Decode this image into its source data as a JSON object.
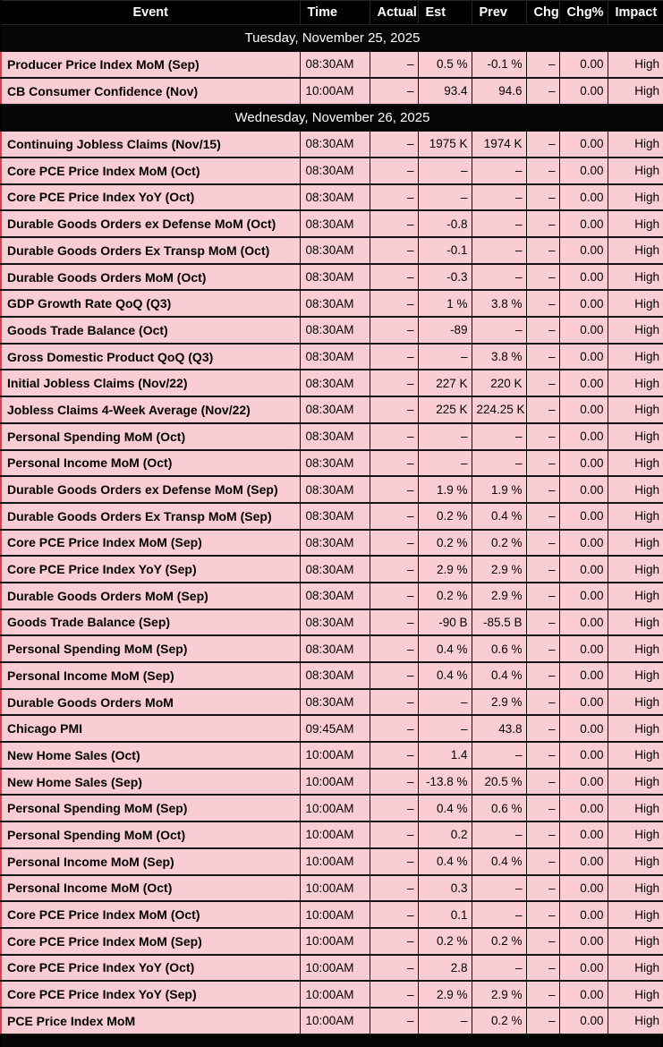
{
  "colors": {
    "row_bg": "#f9cdd3",
    "header_bg": "#000000",
    "date_row_bg": "#050505",
    "cell_border": "#141414",
    "outer_edge_red": "#e23b4f",
    "row_text": "#000000",
    "header_text": "#ffffff"
  },
  "table": {
    "columns": [
      {
        "key": "event",
        "label": "Event"
      },
      {
        "key": "time",
        "label": "Time"
      },
      {
        "key": "actual",
        "label": "Actual"
      },
      {
        "key": "est",
        "label": "Est"
      },
      {
        "key": "prev",
        "label": "Prev"
      },
      {
        "key": "chg",
        "label": "Chg"
      },
      {
        "key": "chgpct",
        "label": "Chg%"
      },
      {
        "key": "impact",
        "label": "Impact"
      }
    ],
    "sections": [
      {
        "date": "Tuesday, November 25, 2025",
        "rows": [
          {
            "event": "Producer Price Index MoM (Sep)",
            "time": "08:30AM",
            "actual": "–",
            "est": "0.5 %",
            "prev": "-0.1 %",
            "chg": "–",
            "chgpct": "0.00",
            "impact": "High"
          },
          {
            "event": "CB Consumer Confidence (Nov)",
            "time": "10:00AM",
            "actual": "–",
            "est": "93.4",
            "prev": "94.6",
            "chg": "–",
            "chgpct": "0.00",
            "impact": "High"
          }
        ]
      },
      {
        "date": "Wednesday, November 26, 2025",
        "rows": [
          {
            "event": "Continuing Jobless Claims (Nov/15)",
            "time": "08:30AM",
            "actual": "–",
            "est": "1975 K",
            "prev": "1974 K",
            "chg": "–",
            "chgpct": "0.00",
            "impact": "High"
          },
          {
            "event": "Core PCE Price Index MoM (Oct)",
            "time": "08:30AM",
            "actual": "–",
            "est": "–",
            "prev": "–",
            "chg": "–",
            "chgpct": "0.00",
            "impact": "High"
          },
          {
            "event": "Core PCE Price Index YoY (Oct)",
            "time": "08:30AM",
            "actual": "–",
            "est": "–",
            "prev": "–",
            "chg": "–",
            "chgpct": "0.00",
            "impact": "High"
          },
          {
            "event": "Durable Goods Orders ex Defense MoM (Oct)",
            "time": "08:30AM",
            "actual": "–",
            "est": "-0.8",
            "prev": "–",
            "chg": "–",
            "chgpct": "0.00",
            "impact": "High"
          },
          {
            "event": "Durable Goods Orders Ex Transp MoM (Oct)",
            "time": "08:30AM",
            "actual": "–",
            "est": "-0.1",
            "prev": "–",
            "chg": "–",
            "chgpct": "0.00",
            "impact": "High"
          },
          {
            "event": "Durable Goods Orders MoM (Oct)",
            "time": "08:30AM",
            "actual": "–",
            "est": "-0.3",
            "prev": "–",
            "chg": "–",
            "chgpct": "0.00",
            "impact": "High"
          },
          {
            "event": "GDP Growth Rate QoQ (Q3)",
            "time": "08:30AM",
            "actual": "–",
            "est": "1 %",
            "prev": "3.8 %",
            "chg": "–",
            "chgpct": "0.00",
            "impact": "High"
          },
          {
            "event": "Goods Trade Balance (Oct)",
            "time": "08:30AM",
            "actual": "–",
            "est": "-89",
            "prev": "–",
            "chg": "–",
            "chgpct": "0.00",
            "impact": "High"
          },
          {
            "event": "Gross Domestic Product QoQ (Q3)",
            "time": "08:30AM",
            "actual": "–",
            "est": "–",
            "prev": "3.8 %",
            "chg": "–",
            "chgpct": "0.00",
            "impact": "High"
          },
          {
            "event": "Initial Jobless Claims (Nov/22)",
            "time": "08:30AM",
            "actual": "–",
            "est": "227 K",
            "prev": "220 K",
            "chg": "–",
            "chgpct": "0.00",
            "impact": "High"
          },
          {
            "event": "Jobless Claims 4-Week Average (Nov/22)",
            "time": "08:30AM",
            "actual": "–",
            "est": "225 K",
            "prev": "224.25 K",
            "chg": "–",
            "chgpct": "0.00",
            "impact": "High"
          },
          {
            "event": "Personal Spending MoM (Oct)",
            "time": "08:30AM",
            "actual": "–",
            "est": "–",
            "prev": "–",
            "chg": "–",
            "chgpct": "0.00",
            "impact": "High"
          },
          {
            "event": "Personal Income MoM (Oct)",
            "time": "08:30AM",
            "actual": "–",
            "est": "–",
            "prev": "–",
            "chg": "–",
            "chgpct": "0.00",
            "impact": "High"
          },
          {
            "event": "Durable Goods Orders ex Defense MoM (Sep)",
            "time": "08:30AM",
            "actual": "–",
            "est": "1.9 %",
            "prev": "1.9 %",
            "chg": "–",
            "chgpct": "0.00",
            "impact": "High"
          },
          {
            "event": "Durable Goods Orders Ex Transp MoM (Sep)",
            "time": "08:30AM",
            "actual": "–",
            "est": "0.2 %",
            "prev": "0.4 %",
            "chg": "–",
            "chgpct": "0.00",
            "impact": "High"
          },
          {
            "event": "Core PCE Price Index MoM (Sep)",
            "time": "08:30AM",
            "actual": "–",
            "est": "0.2 %",
            "prev": "0.2 %",
            "chg": "–",
            "chgpct": "0.00",
            "impact": "High"
          },
          {
            "event": "Core PCE Price Index YoY (Sep)",
            "time": "08:30AM",
            "actual": "–",
            "est": "2.9 %",
            "prev": "2.9 %",
            "chg": "–",
            "chgpct": "0.00",
            "impact": "High"
          },
          {
            "event": "Durable Goods Orders MoM (Sep)",
            "time": "08:30AM",
            "actual": "–",
            "est": "0.2 %",
            "prev": "2.9 %",
            "chg": "–",
            "chgpct": "0.00",
            "impact": "High"
          },
          {
            "event": "Goods Trade Balance (Sep)",
            "time": "08:30AM",
            "actual": "–",
            "est": "-90 B",
            "prev": "-85.5 B",
            "chg": "–",
            "chgpct": "0.00",
            "impact": "High"
          },
          {
            "event": "Personal Spending MoM (Sep)",
            "time": "08:30AM",
            "actual": "–",
            "est": "0.4 %",
            "prev": "0.6 %",
            "chg": "–",
            "chgpct": "0.00",
            "impact": "High"
          },
          {
            "event": "Personal Income MoM (Sep)",
            "time": "08:30AM",
            "actual": "–",
            "est": "0.4 %",
            "prev": "0.4 %",
            "chg": "–",
            "chgpct": "0.00",
            "impact": "High"
          },
          {
            "event": "Durable Goods Orders MoM",
            "time": "08:30AM",
            "actual": "–",
            "est": "–",
            "prev": "2.9 %",
            "chg": "–",
            "chgpct": "0.00",
            "impact": "High"
          },
          {
            "event": "Chicago PMI",
            "time": "09:45AM",
            "actual": "–",
            "est": "–",
            "prev": "43.8",
            "chg": "–",
            "chgpct": "0.00",
            "impact": "High"
          },
          {
            "event": "New Home Sales (Oct)",
            "time": "10:00AM",
            "actual": "–",
            "est": "1.4",
            "prev": "–",
            "chg": "–",
            "chgpct": "0.00",
            "impact": "High"
          },
          {
            "event": "New Home Sales (Sep)",
            "time": "10:00AM",
            "actual": "–",
            "est": "-13.8 %",
            "prev": "20.5 %",
            "chg": "–",
            "chgpct": "0.00",
            "impact": "High"
          },
          {
            "event": "Personal Spending MoM (Sep)",
            "time": "10:00AM",
            "actual": "–",
            "est": "0.4 %",
            "prev": "0.6 %",
            "chg": "–",
            "chgpct": "0.00",
            "impact": "High"
          },
          {
            "event": "Personal Spending MoM (Oct)",
            "time": "10:00AM",
            "actual": "–",
            "est": "0.2",
            "prev": "–",
            "chg": "–",
            "chgpct": "0.00",
            "impact": "High"
          },
          {
            "event": "Personal Income MoM (Sep)",
            "time": "10:00AM",
            "actual": "–",
            "est": "0.4 %",
            "prev": "0.4 %",
            "chg": "–",
            "chgpct": "0.00",
            "impact": "High"
          },
          {
            "event": "Personal Income MoM (Oct)",
            "time": "10:00AM",
            "actual": "–",
            "est": "0.3",
            "prev": "–",
            "chg": "–",
            "chgpct": "0.00",
            "impact": "High"
          },
          {
            "event": "Core PCE Price Index MoM (Oct)",
            "time": "10:00AM",
            "actual": "–",
            "est": "0.1",
            "prev": "–",
            "chg": "–",
            "chgpct": "0.00",
            "impact": "High"
          },
          {
            "event": "Core PCE Price Index MoM (Sep)",
            "time": "10:00AM",
            "actual": "–",
            "est": "0.2 %",
            "prev": "0.2 %",
            "chg": "–",
            "chgpct": "0.00",
            "impact": "High"
          },
          {
            "event": "Core PCE Price Index YoY (Oct)",
            "time": "10:00AM",
            "actual": "–",
            "est": "2.8",
            "prev": "–",
            "chg": "–",
            "chgpct": "0.00",
            "impact": "High"
          },
          {
            "event": "Core PCE Price Index YoY (Sep)",
            "time": "10:00AM",
            "actual": "–",
            "est": "2.9 %",
            "prev": "2.9 %",
            "chg": "–",
            "chgpct": "0.00",
            "impact": "High"
          },
          {
            "event": "PCE Price Index MoM",
            "time": "10:00AM",
            "actual": "–",
            "est": "–",
            "prev": "0.2 %",
            "chg": "–",
            "chgpct": "0.00",
            "impact": "High"
          }
        ]
      }
    ]
  }
}
